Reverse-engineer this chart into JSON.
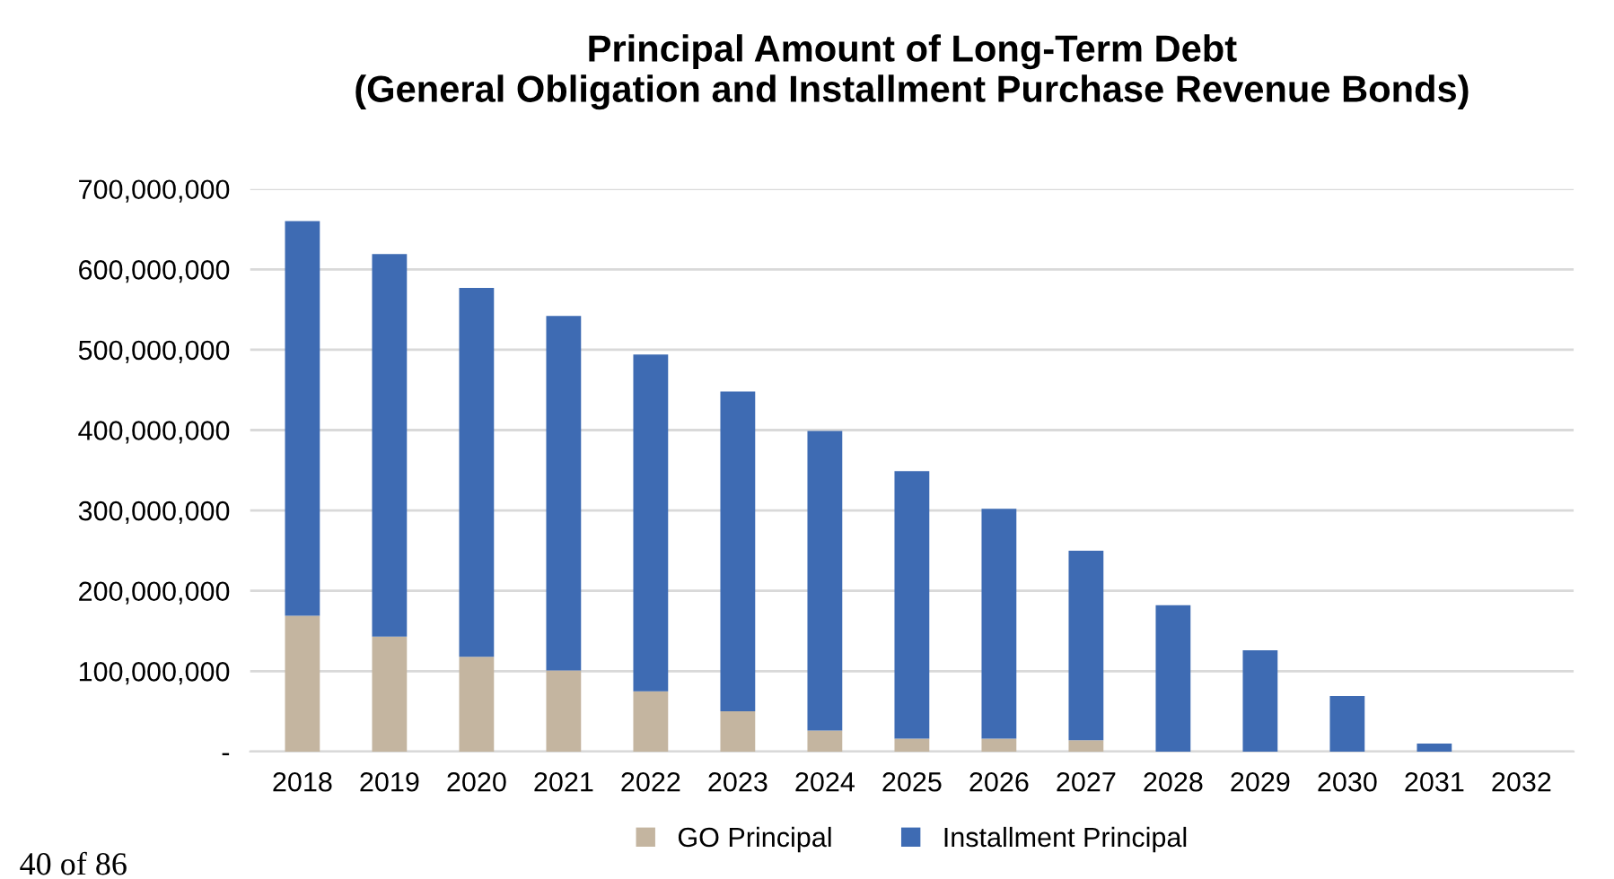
{
  "chart_data": {
    "type": "bar",
    "title": "Principal Amount of Long-Term Debt\n(General Obligation and Installment Purchase Revenue Bonds)",
    "categories": [
      "2018",
      "2019",
      "2020",
      "2021",
      "2022",
      "2023",
      "2024",
      "2025",
      "2026",
      "2027",
      "2028",
      "2029",
      "2030",
      "2031",
      "2032"
    ],
    "stacked": true,
    "series": [
      {
        "name": "GO Principal",
        "color": "#c4b5a0",
        "values": [
          169000000,
          143000000,
          118000000,
          101000000,
          75000000,
          50000000,
          26000000,
          16000000,
          16000000,
          14000000,
          0,
          0,
          0,
          0,
          0
        ]
      },
      {
        "name": "Installment Principal",
        "color": "#3e6bb3",
        "values": [
          491000000,
          476000000,
          459000000,
          441000000,
          419000000,
          398000000,
          373000000,
          333000000,
          286000000,
          236000000,
          182000000,
          126000000,
          69000000,
          10000000,
          0
        ]
      }
    ],
    "ylim": [
      0,
      700000000
    ],
    "yticks": [
      {
        "value": 0,
        "label": "-"
      },
      {
        "value": 100000000,
        "label": "100,000,000"
      },
      {
        "value": 200000000,
        "label": "200,000,000"
      },
      {
        "value": 300000000,
        "label": "300,000,000"
      },
      {
        "value": 400000000,
        "label": "400,000,000"
      },
      {
        "value": 500000000,
        "label": "500,000,000"
      },
      {
        "value": 600000000,
        "label": "600,000,000"
      },
      {
        "value": 700000000,
        "label": "700,000,000"
      }
    ],
    "grid": "y",
    "legend": "bottom",
    "annotations": [
      "40 of 86"
    ]
  }
}
